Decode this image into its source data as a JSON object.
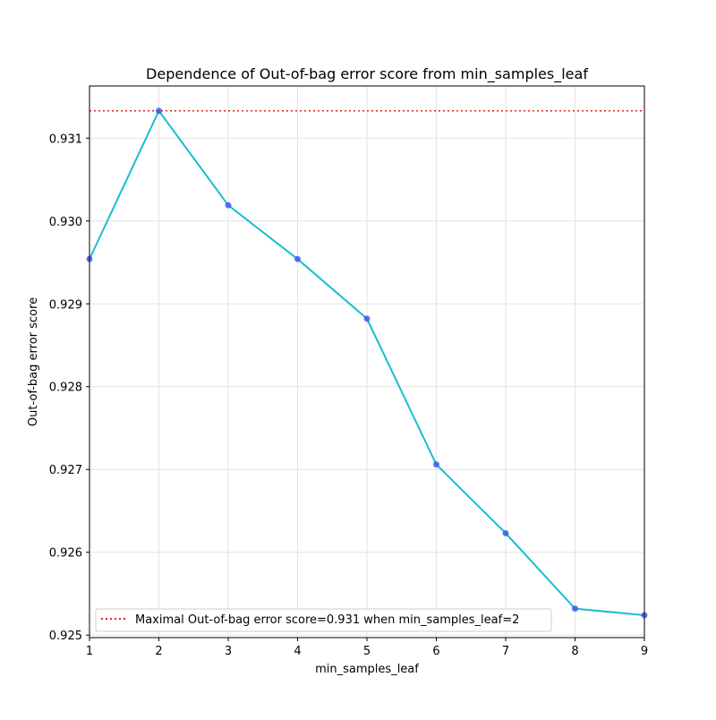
{
  "chart_data": {
    "type": "line",
    "title": "Dependence of Out-of-bag error score from min_samples_leaf",
    "xlabel": "min_samples_leaf",
    "ylabel": "Out-of-bag error score",
    "x": [
      1,
      2,
      3,
      4,
      5,
      6,
      7,
      8,
      9
    ],
    "xlim": [
      1,
      9
    ],
    "ylim": [
      0.92497,
      0.93163
    ],
    "xticks": [
      "1",
      "2",
      "3",
      "4",
      "5",
      "6",
      "7",
      "8",
      "9"
    ],
    "yticks": [
      "0.925",
      "0.926",
      "0.927",
      "0.928",
      "0.929",
      "0.930",
      "0.931"
    ],
    "grid": true,
    "legend_position": "lower left",
    "series": [
      {
        "values": [
          0.92954,
          0.93133,
          0.93019,
          0.92954,
          0.92882,
          0.92706,
          0.92623,
          0.92532,
          0.92524
        ],
        "color": "#17becf",
        "marker_color": "#4050f0"
      }
    ],
    "reference_line": {
      "y": 0.93133,
      "style": "dotted",
      "color": "#d62728",
      "label": "Maximal Out-of-bag error score=0.931 when min_samples_leaf=2"
    }
  }
}
